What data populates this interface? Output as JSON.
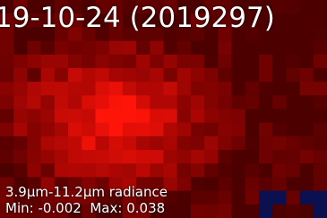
{
  "image": {
    "title": "19-10-24 (2019297)",
    "caption": "3.9μm-11.2μm radiance",
    "min_label": "Min:",
    "min": -0.002,
    "max_label": "Max:",
    "max": 0.038
  }
}
